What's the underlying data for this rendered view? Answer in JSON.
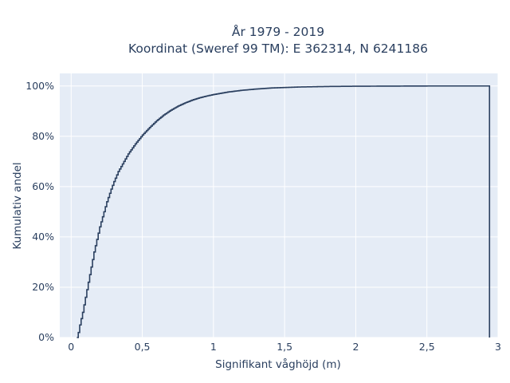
{
  "chart_data": {
    "type": "line",
    "title": {
      "line1": "År 1979 - 2019",
      "line2": "Koordinat (Sweref 99 TM): E 362314, N 6241186"
    },
    "xlabel": "Signifikant våghöjd (m)",
    "ylabel": "Kumulativ andel",
    "xlim": [
      -0.08,
      3.0
    ],
    "ylim": [
      0,
      1.05
    ],
    "x_ticks": [
      {
        "value": 0,
        "label": "0"
      },
      {
        "value": 0.5,
        "label": "0,5"
      },
      {
        "value": 1,
        "label": "1"
      },
      {
        "value": 1.5,
        "label": "1,5"
      },
      {
        "value": 2,
        "label": "2"
      },
      {
        "value": 2.5,
        "label": "2,5"
      },
      {
        "value": 3,
        "label": "3"
      }
    ],
    "y_ticks": [
      {
        "value": 0,
        "label": "0%"
      },
      {
        "value": 0.2,
        "label": "20%"
      },
      {
        "value": 0.4,
        "label": "40%"
      },
      {
        "value": 0.6,
        "label": "60%"
      },
      {
        "value": 0.8,
        "label": "80%"
      },
      {
        "value": 1.0,
        "label": "100%"
      }
    ],
    "grid": true,
    "background": "#e5ecf6",
    "line_color": "#2a3f5f",
    "series": [
      {
        "step": true,
        "x": [
          0.04,
          0.05,
          0.06,
          0.08,
          0.1,
          0.12,
          0.14,
          0.16,
          0.18,
          0.2,
          0.22,
          0.25,
          0.28,
          0.3,
          0.33,
          0.36,
          0.4,
          0.45,
          0.5,
          0.55,
          0.6,
          0.65,
          0.7,
          0.75,
          0.8,
          0.85,
          0.9,
          0.95,
          1.0,
          1.1,
          1.2,
          1.3,
          1.4,
          1.5,
          1.6,
          1.8,
          2.0,
          2.5,
          2.94
        ],
        "y": [
          0.0,
          0.02,
          0.05,
          0.1,
          0.16,
          0.22,
          0.28,
          0.34,
          0.39,
          0.44,
          0.48,
          0.54,
          0.59,
          0.62,
          0.66,
          0.69,
          0.73,
          0.77,
          0.805,
          0.835,
          0.862,
          0.885,
          0.904,
          0.92,
          0.933,
          0.944,
          0.953,
          0.96,
          0.966,
          0.976,
          0.983,
          0.988,
          0.992,
          0.994,
          0.996,
          0.998,
          0.999,
          1.0,
          1.0
        ]
      }
    ]
  }
}
